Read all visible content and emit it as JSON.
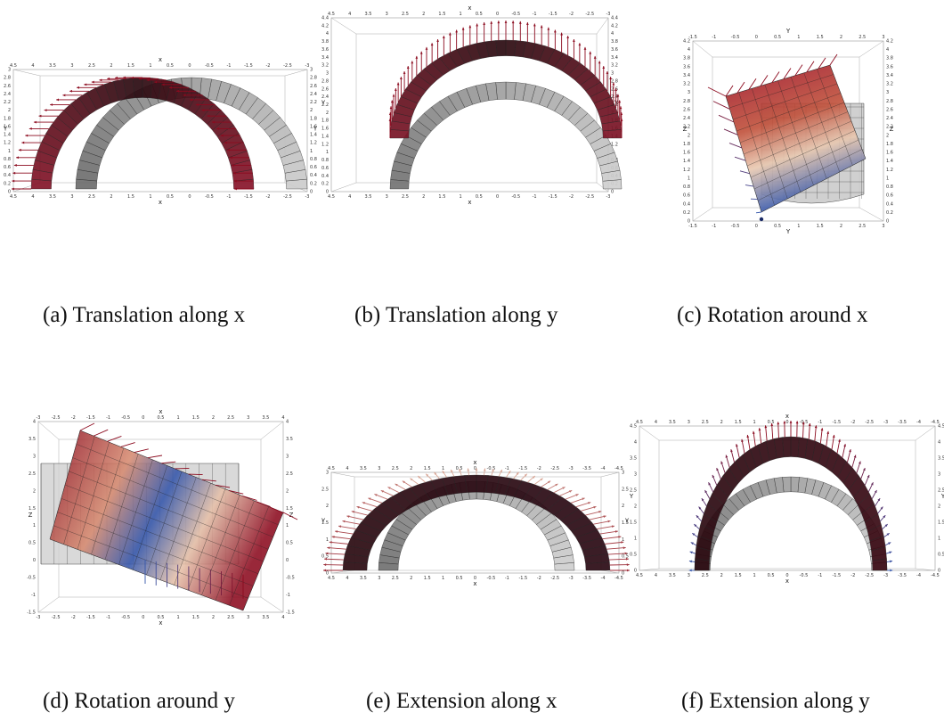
{
  "captions": {
    "a": "(a) Translation along x",
    "b": "(b) Translation along y",
    "c": "(c) Rotation around x",
    "d": "(d) Rotation around y",
    "e": "(e) Extension along x",
    "f": "(f) Extension along y"
  },
  "axis_labels": {
    "a": {
      "top": "x",
      "bottom": "x",
      "left": "Y",
      "right": "Y"
    },
    "b": {
      "top": "x",
      "bottom": "x",
      "left": "Y",
      "right": "Y"
    },
    "c": {
      "top": "Y",
      "bottom": "Y",
      "left": "Z",
      "right": "Z"
    },
    "d": {
      "top": "x",
      "bottom": "x",
      "left": "Z",
      "right": "Z"
    },
    "e": {
      "top": "x",
      "bottom": "x",
      "left": "Y",
      "right": "Y"
    },
    "f": {
      "top": "x",
      "bottom": "x",
      "left": "Y",
      "right": "Y"
    }
  },
  "ticks": {
    "a": {
      "h": [
        "4.5",
        "4",
        "3.5",
        "3",
        "2.5",
        "2",
        "1.5",
        "1",
        "0.5",
        "0",
        "-0.5",
        "-1",
        "-1.5",
        "-2",
        "-2.5",
        "-3"
      ],
      "v": [
        "0",
        "0.2",
        "0.4",
        "0.6",
        "0.8",
        "1",
        "1.2",
        "1.4",
        "1.6",
        "1.8",
        "2",
        "2.2",
        "2.4",
        "2.6",
        "2.8",
        "3"
      ]
    },
    "b": {
      "h": [
        "4.5",
        "4",
        "3.5",
        "3",
        "2.5",
        "2",
        "1.5",
        "1",
        "0.5",
        "0",
        "-0.5",
        "-1",
        "-1.5",
        "-2",
        "-2.5",
        "-3"
      ],
      "v": [
        "0",
        "0.2",
        "0.4",
        "0.6",
        "0.8",
        "1",
        "1.2",
        "1.4",
        "1.6",
        "1.8",
        "2",
        "2.2",
        "2.4",
        "2.6",
        "2.8",
        "3",
        "3.2",
        "3.4",
        "3.6",
        "3.8",
        "4",
        "4.2",
        "4.4"
      ]
    },
    "c": {
      "h": [
        "-1.5",
        "-1",
        "-0.5",
        "0",
        "0.5",
        "1",
        "1.5",
        "2",
        "2.5",
        "3"
      ],
      "v": [
        "0",
        "0.2",
        "0.4",
        "0.6",
        "0.8",
        "1",
        "1.2",
        "1.4",
        "1.6",
        "1.8",
        "2",
        "2.2",
        "2.4",
        "2.6",
        "2.8",
        "3",
        "3.2",
        "3.4",
        "3.6",
        "3.8",
        "4",
        "4.2"
      ]
    },
    "d": {
      "h": [
        "-3",
        "-2.5",
        "-2",
        "-1.5",
        "-1",
        "-0.5",
        "0",
        "0.5",
        "1",
        "1.5",
        "2",
        "2.5",
        "3",
        "3.5",
        "4"
      ],
      "v": [
        "-1.5",
        "-1",
        "-0.5",
        "0",
        "0.5",
        "1",
        "1.5",
        "2",
        "2.5",
        "3",
        "3.5",
        "4"
      ]
    },
    "e": {
      "h": [
        "4.5",
        "4",
        "3.5",
        "3",
        "2.5",
        "2",
        "1.5",
        "1",
        "0.5",
        "0",
        "-0.5",
        "-1",
        "-1.5",
        "-2",
        "-2.5",
        "-3",
        "-3.5",
        "-4",
        "-4.5"
      ],
      "v": [
        "0",
        "0.5",
        "1",
        "1.5",
        "2",
        "2.5",
        "3"
      ]
    },
    "f": {
      "h": [
        "4.5",
        "4",
        "3.5",
        "3",
        "2.5",
        "2",
        "1.5",
        "1",
        "0.5",
        "0",
        "-0.5",
        "-1",
        "-1.5",
        "-2",
        "-2.5",
        "-3",
        "-3.5",
        "-4",
        "-4.5"
      ],
      "v": [
        "0",
        "0.5",
        "1",
        "1.5",
        "2",
        "2.5",
        "3",
        "3.5",
        "4",
        "4.5"
      ]
    }
  },
  "colors": {
    "arrow_red": "#8b0a1e",
    "arrow_blue": "#3355aa",
    "surface_grey": "#9a9a9a",
    "surface_dark": "#2a0a10",
    "mesh": "#222222"
  }
}
